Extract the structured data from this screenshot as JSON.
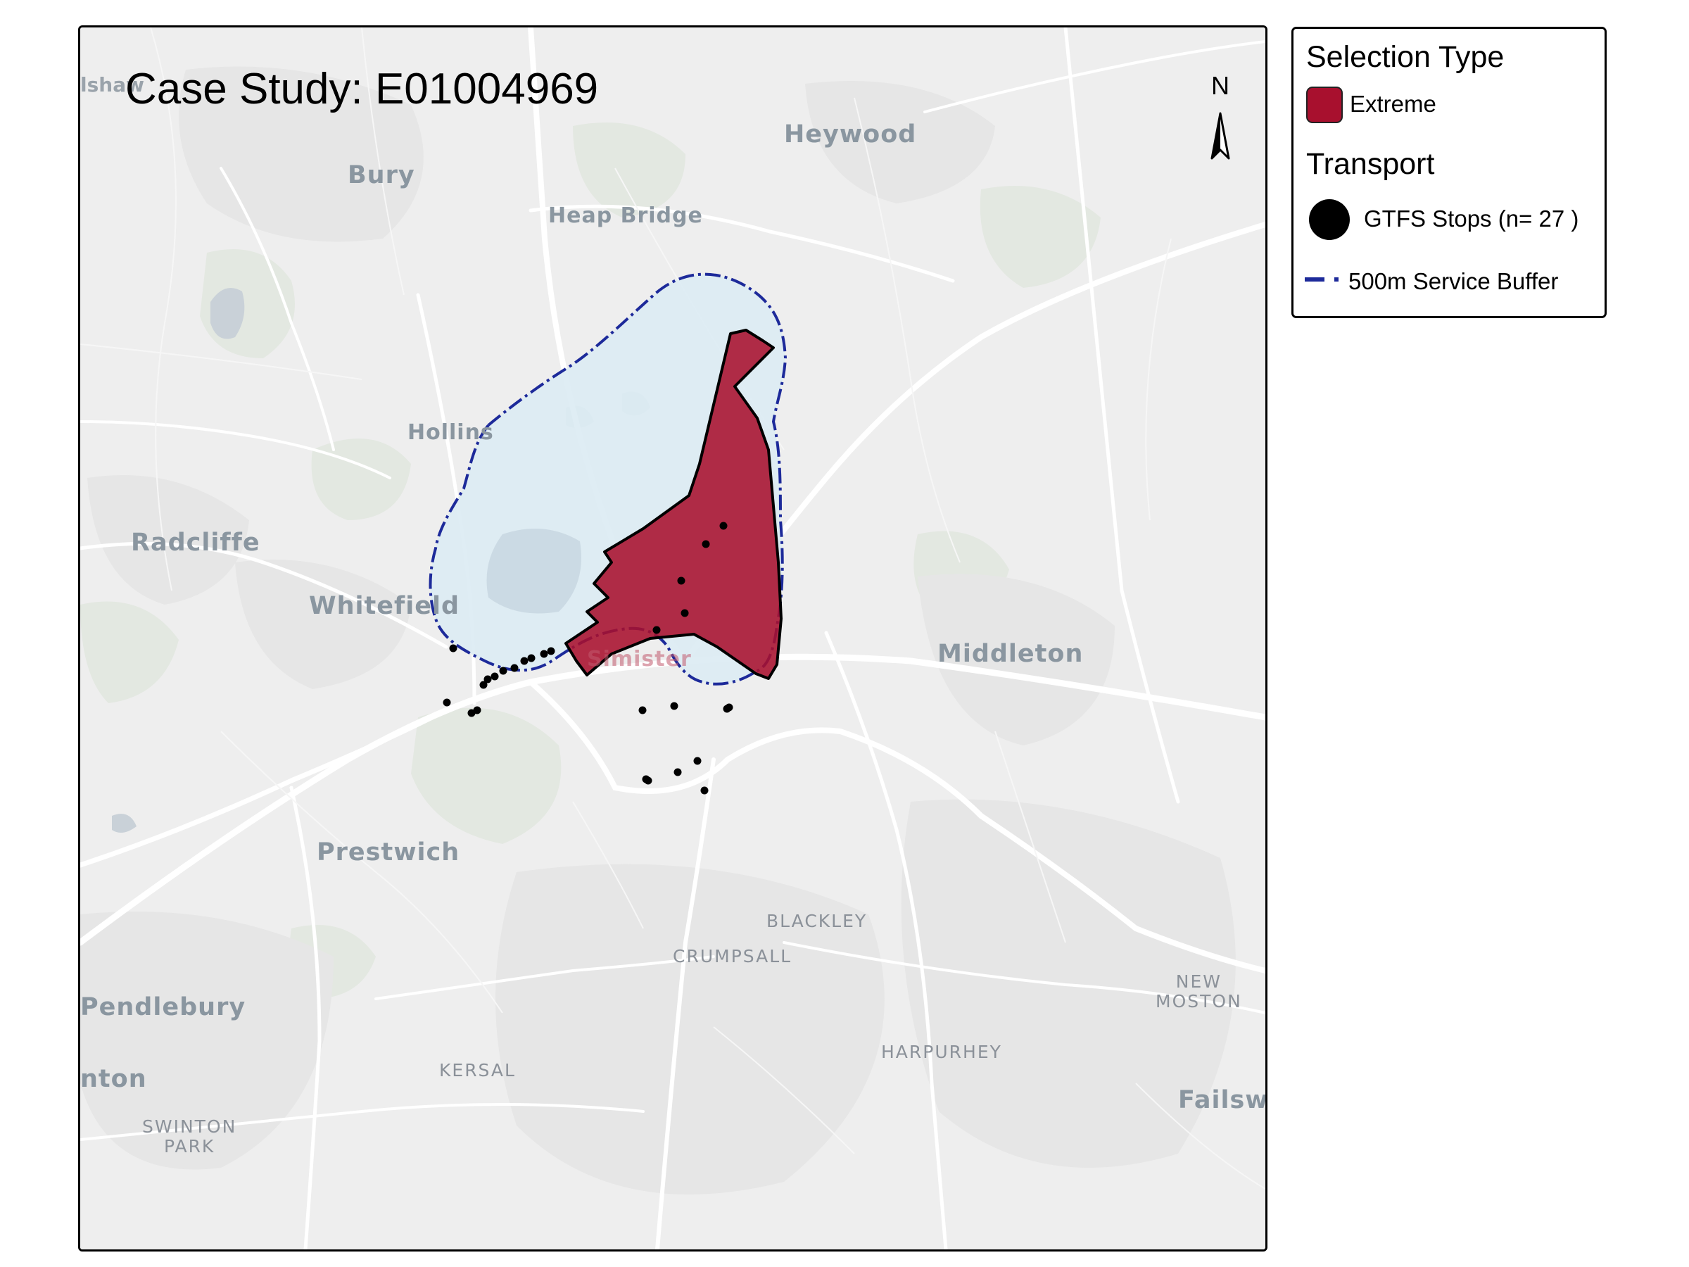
{
  "map": {
    "title": "Case Study: E01004969",
    "north_label": "N",
    "places": [
      {
        "id": "lshaw",
        "label": "lshaw"
      },
      {
        "id": "bury",
        "label": "Bury"
      },
      {
        "id": "heywood",
        "label": "Heywood"
      },
      {
        "id": "heap-bridge",
        "label": "Heap Bridge"
      },
      {
        "id": "hollins",
        "label": "Hollins"
      },
      {
        "id": "radcliffe",
        "label": "Radcliffe"
      },
      {
        "id": "whitefield",
        "label": "Whitefield"
      },
      {
        "id": "simister",
        "label": "Simister"
      },
      {
        "id": "middleton",
        "label": "Middleton"
      },
      {
        "id": "prestwich",
        "label": "Prestwich"
      },
      {
        "id": "blackley",
        "label": "BLACKLEY"
      },
      {
        "id": "crumpsall",
        "label": "CRUMPSALL"
      },
      {
        "id": "new-moston",
        "label": "NEW\nMOSTON"
      },
      {
        "id": "pendlebury",
        "label": "Pendlebury"
      },
      {
        "id": "harpurhey",
        "label": "HARPURHEY"
      },
      {
        "id": "kersal",
        "label": "KERSAL"
      },
      {
        "id": "swinton",
        "label": "nton"
      },
      {
        "id": "swinton-park",
        "label": "SWINTON\nPARK"
      },
      {
        "id": "failsworth",
        "label": "Failsw"
      }
    ],
    "colors": {
      "extreme_fill": "#a8102e",
      "buffer_fill": "#d9ecf5",
      "buffer_stroke": "#1d2a9a",
      "stops": "#000000"
    }
  },
  "legend": {
    "selection_title": "Selection Type",
    "extreme_label": "Extreme",
    "transport_title": "Transport",
    "stops_label": "GTFS Stops (n= 27 )",
    "buffer_label": "500m Service Buffer"
  }
}
